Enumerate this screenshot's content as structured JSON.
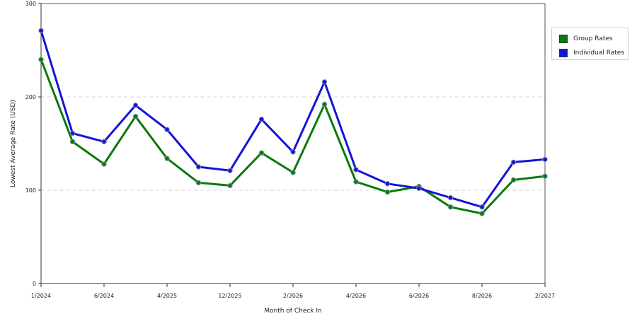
{
  "chart_data": {
    "type": "line",
    "xlabel": "Month of Check In",
    "ylabel": "Lowest Average Rate (USD)",
    "ylim": [
      0,
      300
    ],
    "yticks": [
      0,
      100,
      200,
      300
    ],
    "grid": true,
    "legend_position": "top-right",
    "x_tick_labels": [
      "1/2024",
      "6/2024",
      "4/2025",
      "12/2025",
      "2/2026",
      "4/2026",
      "6/2026",
      "8/2026",
      "2/2027"
    ],
    "series": [
      {
        "name": "Group Rates",
        "color": "#0a7a0a",
        "values": [
          240,
          152,
          128,
          179,
          134,
          108,
          105,
          140,
          119,
          192,
          109,
          98,
          104,
          82,
          75,
          111,
          115
        ]
      },
      {
        "name": "Individual Rates",
        "color": "#1414d6",
        "values": [
          271,
          161,
          152,
          191,
          165,
          125,
          121,
          176,
          141,
          216,
          122,
          107,
          102,
          92,
          82,
          130,
          133
        ]
      }
    ]
  }
}
